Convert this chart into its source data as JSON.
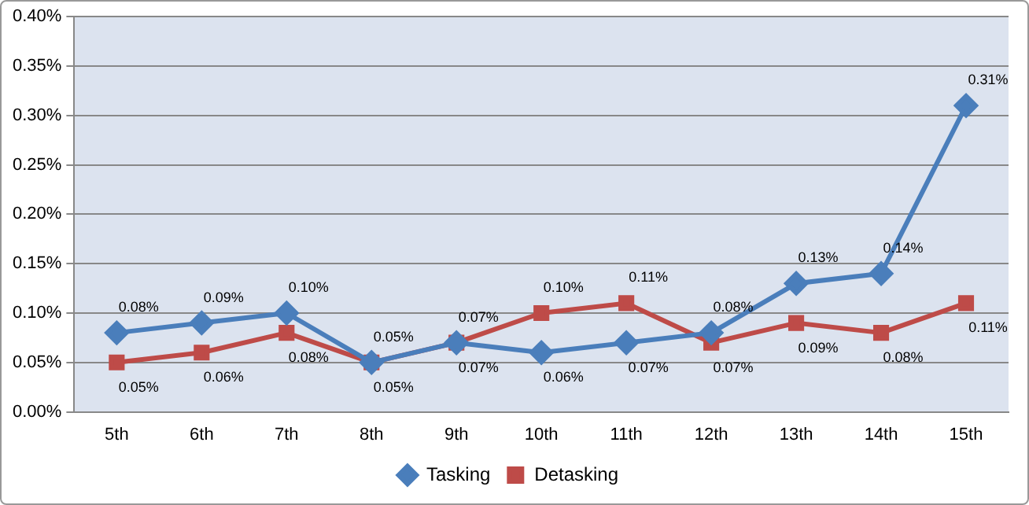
{
  "chart_data": {
    "type": "line",
    "categories": [
      "5th",
      "6th",
      "7th",
      "8th",
      "9th",
      "10th",
      "11th",
      "12th",
      "13th",
      "14th",
      "15th"
    ],
    "series": [
      {
        "name": "Tasking",
        "color": "#4a7ebb",
        "marker": "diamond",
        "values": [
          0.08,
          0.09,
          0.1,
          0.05,
          0.07,
          0.06,
          0.07,
          0.08,
          0.13,
          0.14,
          0.31
        ],
        "value_labels": [
          "0.08%",
          "0.09%",
          "0.10%",
          "0.05%",
          "0.07%",
          "0.06%",
          "0.07%",
          "0.08%",
          "0.13%",
          "0.14%",
          "0.31%"
        ]
      },
      {
        "name": "Detasking",
        "color": "#be4b48",
        "marker": "square",
        "values": [
          0.05,
          0.06,
          0.08,
          0.05,
          0.07,
          0.1,
          0.11,
          0.07,
          0.09,
          0.08,
          0.11
        ],
        "value_labels": [
          "0.05%",
          "0.06%",
          "0.08%",
          "0.05%",
          "0.07%",
          "0.10%",
          "0.11%",
          "0.07%",
          "0.09%",
          "0.08%",
          "0.11%"
        ]
      }
    ],
    "ylim": [
      0,
      0.4
    ],
    "yticks": [
      {
        "value": 0,
        "label": "0.00%"
      },
      {
        "value": 0.05,
        "label": "0.05%"
      },
      {
        "value": 0.1,
        "label": "0.10%"
      },
      {
        "value": 0.15,
        "label": "0.15%"
      },
      {
        "value": 0.2,
        "label": "0.20%"
      },
      {
        "value": 0.25,
        "label": "0.25%"
      },
      {
        "value": 0.3,
        "label": "0.30%"
      },
      {
        "value": 0.35,
        "label": "0.35%"
      },
      {
        "value": 0.4,
        "label": "0.40%"
      }
    ],
    "grid": "y",
    "legend": "bottom",
    "line_style": "solid"
  }
}
